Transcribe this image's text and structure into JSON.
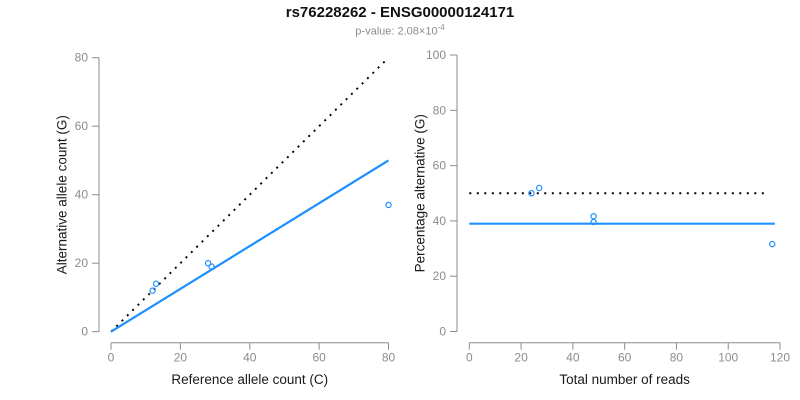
{
  "header": {
    "title": "rs76228262 - ENSG00000124171",
    "p_value_prefix": "p-value: 2.08×10",
    "p_value_exponent": "-4"
  },
  "colors": {
    "series_blue": "#1E90FF",
    "reference_line_black": "#000000",
    "axis_gray": "#8C8C8C",
    "title_black": "#111111",
    "subtitle_gray": "#8C8C8C"
  },
  "chart_data": [
    {
      "type": "scatter",
      "xlabel": "Reference allele count (C)",
      "ylabel": "Alternative allele count (G)",
      "xlim": [
        0,
        80
      ],
      "ylim": [
        0,
        80
      ],
      "xticks": [
        0,
        20,
        40,
        60,
        80
      ],
      "yticks": [
        0,
        20,
        40,
        60,
        80
      ],
      "grid": false,
      "legend": false,
      "marker": "open-circle",
      "points": [
        [
          12,
          12
        ],
        [
          13,
          14
        ],
        [
          28,
          20
        ],
        [
          29,
          19
        ],
        [
          80,
          37
        ]
      ],
      "lines": [
        {
          "style": "dotted",
          "color": "#000000",
          "x1": 0,
          "y1": 0,
          "x2": 80,
          "y2": 80
        },
        {
          "style": "solid",
          "color": "#1E90FF",
          "x1": 0,
          "y1": 0,
          "x2": 80,
          "y2": 50
        }
      ]
    },
    {
      "type": "scatter",
      "xlabel": "Total number of reads",
      "ylabel": "Percentage alternative (G)",
      "xlim": [
        0,
        120
      ],
      "ylim": [
        0,
        100
      ],
      "xticks": [
        0,
        20,
        40,
        60,
        80,
        100,
        120
      ],
      "yticks": [
        0,
        20,
        40,
        60,
        80,
        100
      ],
      "grid": false,
      "legend": false,
      "marker": "open-circle",
      "points": [
        [
          24,
          50
        ],
        [
          27,
          51.9
        ],
        [
          48,
          41.7
        ],
        [
          48,
          39.6
        ],
        [
          117,
          31.6
        ]
      ],
      "lines": [
        {
          "style": "dotted",
          "color": "#000000",
          "x1": 0,
          "y1": 50,
          "x2": 115.5,
          "y2": 50
        },
        {
          "style": "solid",
          "color": "#1E90FF",
          "x1": 0,
          "y1": 39,
          "x2": 118,
          "y2": 39
        }
      ]
    }
  ]
}
